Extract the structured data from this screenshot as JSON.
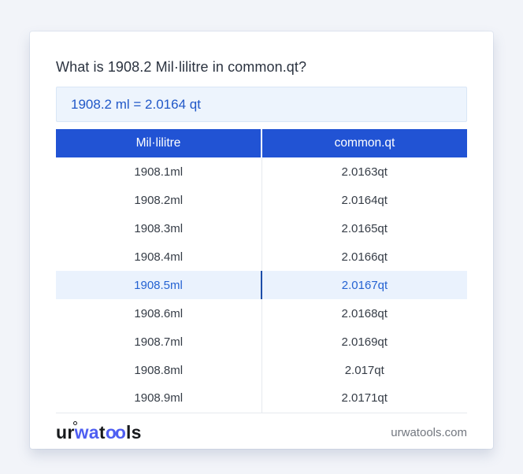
{
  "title": "What is 1908.2 Mil·lilitre in common.qt?",
  "result_text": "1908.2 ml = 2.0164 qt",
  "table": {
    "columns": [
      "Mil·lilitre",
      "common.qt"
    ],
    "rows": [
      [
        "1908.1ml",
        "2.0163qt"
      ],
      [
        "1908.2ml",
        "2.0164qt"
      ],
      [
        "1908.3ml",
        "2.0165qt"
      ],
      [
        "1908.4ml",
        "2.0166qt"
      ],
      [
        "1908.5ml",
        "2.0167qt"
      ],
      [
        "1908.6ml",
        "2.0168qt"
      ],
      [
        "1908.7ml",
        "2.0169qt"
      ],
      [
        "1908.8ml",
        "2.017qt"
      ],
      [
        "1908.9ml",
        "2.0171qt"
      ]
    ],
    "highlighted_row_index": 4
  },
  "footer": {
    "logo": {
      "seg1": "ur",
      "seg2": "wa",
      "seg3": "t",
      "seg4": "oo",
      "seg5": "ls"
    },
    "site_url": "urwatools.com"
  },
  "colors": {
    "page_bg": "#f2f4f9",
    "table_header_bg": "#2153d4",
    "result_bg": "#edf4fd",
    "result_text": "#2158c8",
    "highlight_bg": "#eaf2fd",
    "highlight_text": "#2563d2",
    "highlight_divider": "#1c4da8",
    "logo_blue": "#4e5ef2"
  }
}
